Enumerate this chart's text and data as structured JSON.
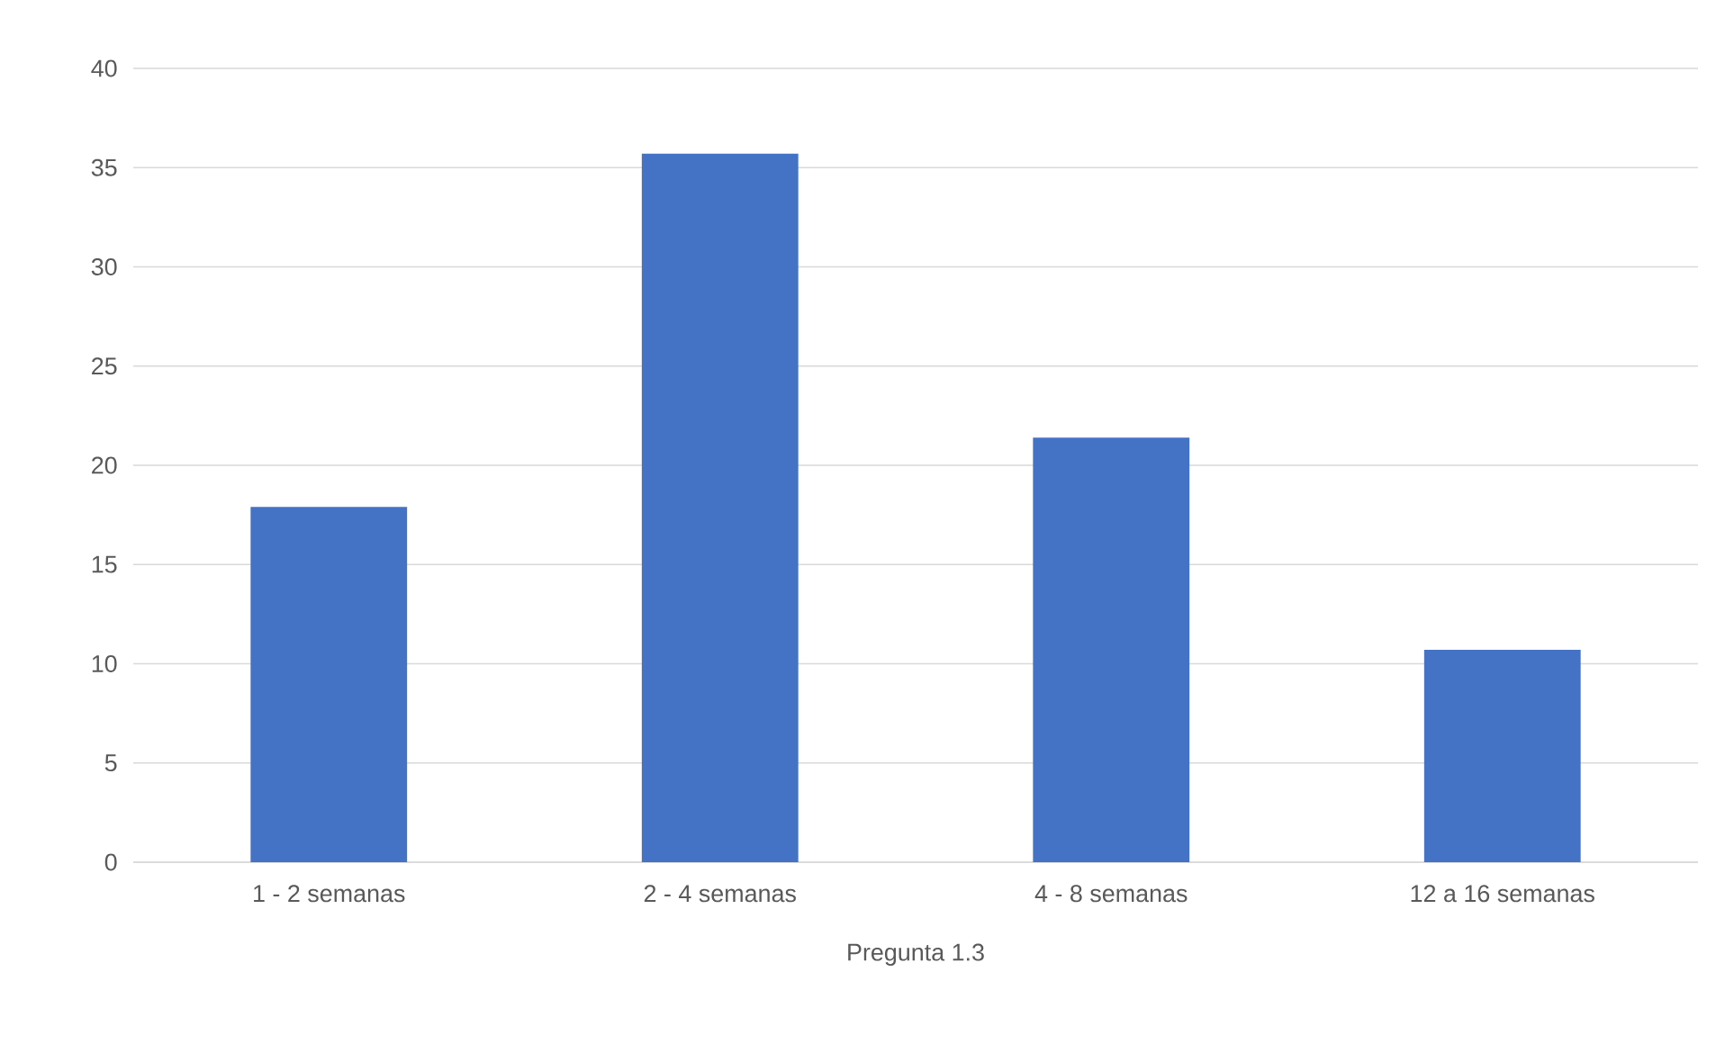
{
  "chart_data": {
    "type": "bar",
    "xlabel": "Pregunta 1.3",
    "categories": [
      "1 - 2 semanas",
      "2 - 4 semanas",
      "4 - 8 semanas",
      "12 a 16 semanas"
    ],
    "values": [
      17.9,
      35.7,
      21.4,
      10.7
    ],
    "color": "#4472c4",
    "ylim": [
      0,
      40
    ],
    "yticks": [
      0,
      5,
      10,
      15,
      20,
      25,
      30,
      35,
      40
    ],
    "grid": "y"
  }
}
